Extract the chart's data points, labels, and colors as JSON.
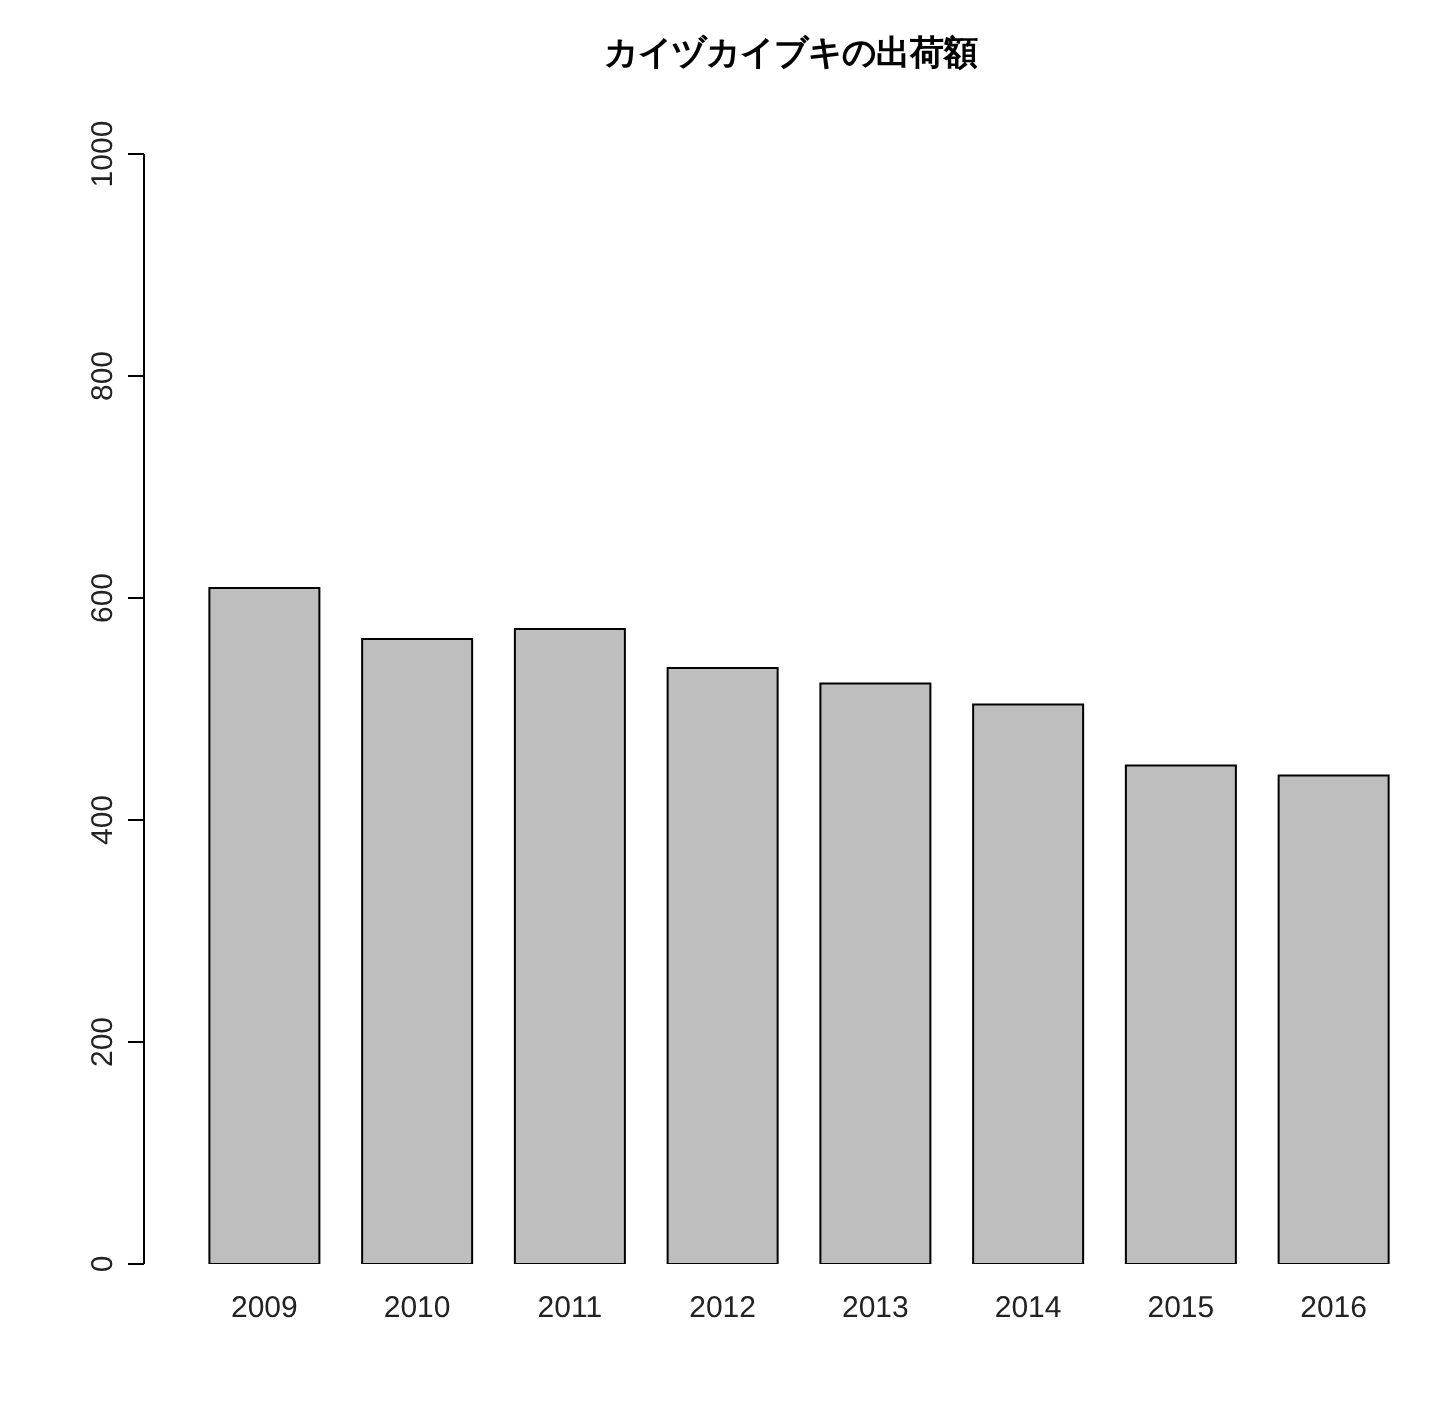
{
  "chart_data": {
    "type": "bar",
    "title": "カイヅカイブキの出荷額",
    "categories": [
      "2009",
      "2010",
      "2011",
      "2012",
      "2013",
      "2014",
      "2015",
      "2016"
    ],
    "values": [
      609,
      563,
      572,
      537,
      523,
      504,
      449,
      440
    ],
    "color": "#bebebe",
    "ylim": [
      0,
      1000
    ],
    "yticks": [
      0,
      200,
      400,
      600,
      800,
      1000
    ],
    "grid": false,
    "legend": false
  }
}
